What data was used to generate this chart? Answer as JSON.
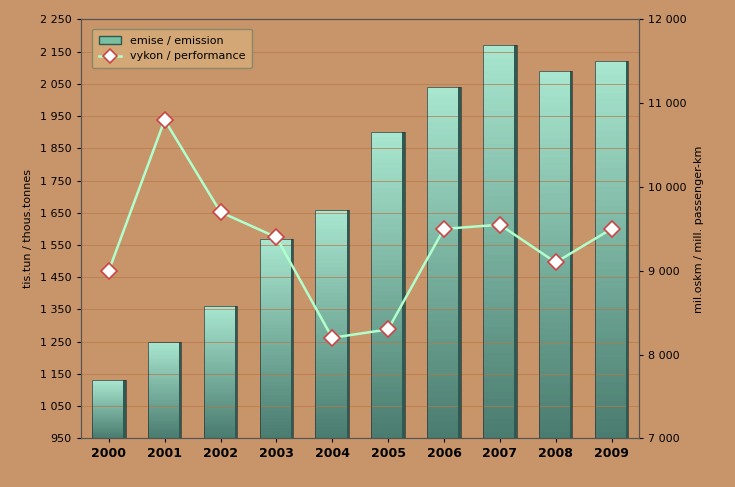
{
  "years": [
    2000,
    2001,
    2002,
    2003,
    2004,
    2005,
    2006,
    2007,
    2008,
    2009
  ],
  "emission": [
    1130,
    1250,
    1360,
    1570,
    1660,
    1900,
    2040,
    2170,
    2090,
    2120
  ],
  "performance": [
    9000,
    10800,
    9700,
    9400,
    8200,
    8300,
    9500,
    9550,
    9100,
    9500
  ],
  "left_ylim": [
    950,
    2250
  ],
  "right_ylim": [
    7000,
    12000
  ],
  "left_yticks": [
    950,
    1050,
    1150,
    1250,
    1350,
    1450,
    1550,
    1650,
    1750,
    1850,
    1950,
    2050,
    2150,
    2250
  ],
  "right_yticks": [
    7000,
    8000,
    9000,
    10000,
    11000,
    12000
  ],
  "left_ytick_labels": [
    "950",
    "1 050",
    "1 150",
    "1 250",
    "1 350",
    "1 450",
    "1 550",
    "1 650",
    "1 750",
    "1 850",
    "1 950",
    "2 050",
    "2 150",
    "2 250"
  ],
  "right_ytick_labels": [
    "7 000",
    "8 000",
    "9 000",
    "10 000",
    "11 000",
    "12 000"
  ],
  "left_ylabel": "tis.tun / thous.tonnes",
  "right_ylabel": "mil.oskm / mill. passenger-km",
  "bar_color_top": "#a8e6cf",
  "bar_color_bottom": "#4a7c6f",
  "bar_color_dark": "#2d5a52",
  "line_color": "#b0ffcc",
  "marker_face": "#ffffff",
  "marker_edge": "#cc4444",
  "background_color": "#c8956a",
  "outer_bg": "#c8956a",
  "legend_emission": "emise / emission",
  "legend_performance": "vykon / performance",
  "border_color": "#8B6914",
  "grid_color": "#b87748"
}
